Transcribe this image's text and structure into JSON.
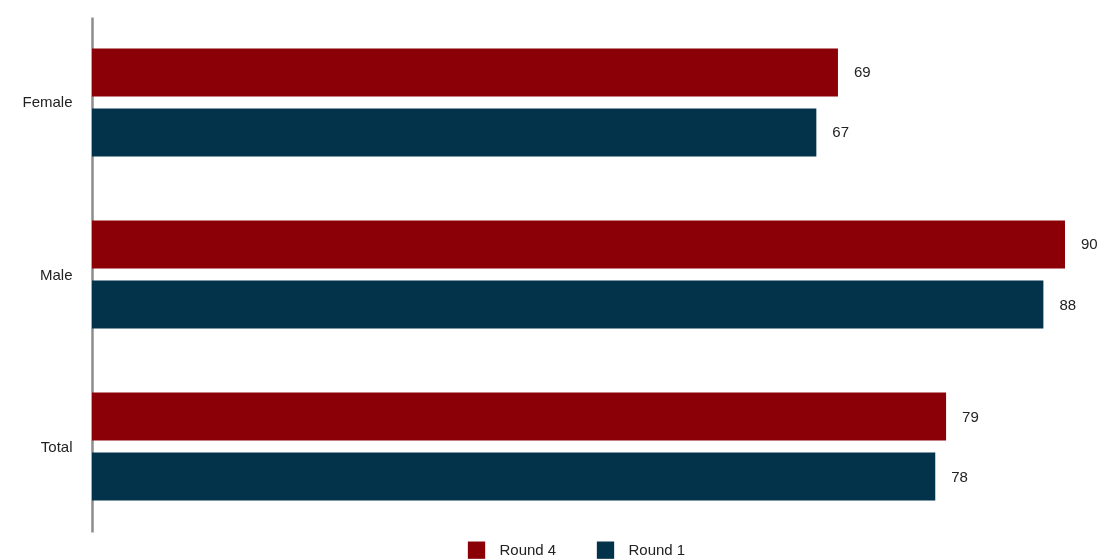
{
  "chart_data": {
    "type": "bar",
    "orientation": "horizontal",
    "categories": [
      "Female",
      "Male",
      "Total"
    ],
    "series": [
      {
        "name": "Round 4",
        "color": "#8b0006",
        "values": [
          69,
          90,
          79
        ]
      },
      {
        "name": "Round 1",
        "color": "#02334a",
        "values": [
          67,
          88,
          78
        ]
      }
    ],
    "data_labels": true,
    "legend": "bottom"
  }
}
